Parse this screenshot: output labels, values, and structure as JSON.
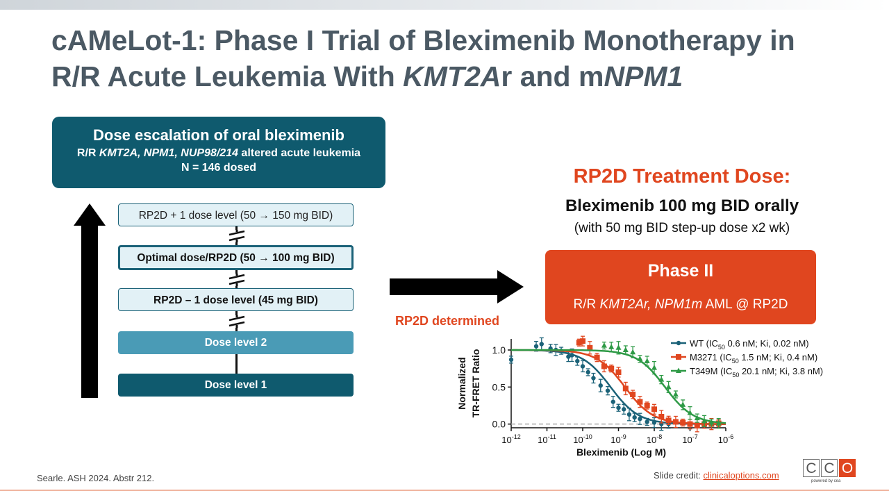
{
  "slide": {
    "title_line1": "cAMeLot-1: Phase I Trial of Bleximenib Monotherapy in",
    "title_line2_a": "R/R Acute Leukemia With ",
    "title_line2_b": "KMT2A",
    "title_line2_c": "r and m",
    "title_line2_d": "NPM1"
  },
  "escalation": {
    "title": "Dose escalation of oral bleximenib",
    "sub_a": "R/R ",
    "sub_b": "KMT2A, NPM1, NUP98/214",
    "sub_c": " altered acute leukemia",
    "n": "N = 146 dosed"
  },
  "levels": [
    "RP2D + 1 dose level (50 → 150 mg BID)",
    "Optimal dose/RP2D (50 → 100 mg BID)",
    "RP2D – 1 dose level (45 mg BID)",
    "Dose level 2",
    "Dose level 1"
  ],
  "rp2d": {
    "determined": "RP2D determined",
    "title": "RP2D Treatment Dose:",
    "dose": "Bleximenib 100 mg BID orally",
    "stepup": "(with 50 mg BID step-up dose x2 wk)"
  },
  "phase2": {
    "title": "Phase II",
    "sub_a": "R/R ",
    "sub_b": "KMT2Ar, NPM1m",
    "sub_c": " AML @ RP2D"
  },
  "footer": {
    "citation": "Searle. ASH 2024. Abstr 212.",
    "credit_label": "Slide credit: ",
    "credit_link": "clinicaloptions.com",
    "logo_letters": [
      "C",
      "C",
      "O"
    ],
    "logo_tag": "powered by cea"
  },
  "colors": {
    "title": "#4b5964",
    "teal_dark": "#0f5a6e",
    "teal_mid": "#4a9bb6",
    "teal_light": "#e2f1f6",
    "orange": "#e0461f",
    "wt": "#1b6278",
    "m3271": "#e0461f",
    "t349m": "#2e9a46"
  },
  "chart_data": {
    "type": "scatter",
    "xlabel": "Bleximenib (Log M)",
    "ylabel_line1": "Normalized",
    "ylabel_line2": "TR-FRET Ratio",
    "x_log_range": [
      -12,
      -6
    ],
    "ylim": [
      -0.05,
      1.15
    ],
    "x_ticks": [
      -12,
      -11,
      -10,
      -9,
      -8,
      -7,
      -6
    ],
    "y_ticks": [
      "1.0",
      "0.5",
      "0.0"
    ],
    "y_tick_values": [
      1.0,
      0.5,
      0.0
    ],
    "legend_position": "top-right",
    "series": [
      {
        "name": "WT",
        "ic50_label": "0.6 nM; Ki, 0.02 nM)",
        "ic50_log": -9.22,
        "hill": 1.1,
        "points": [
          [
            -12.0,
            0.87
          ],
          [
            -11.3,
            1.05
          ],
          [
            -11.15,
            1.08
          ],
          [
            -10.9,
            1.02
          ],
          [
            -10.75,
            1.0
          ],
          [
            -10.6,
            0.99
          ],
          [
            -10.4,
            0.91
          ],
          [
            -10.3,
            0.93
          ],
          [
            -10.15,
            0.85
          ],
          [
            -10.0,
            0.78
          ],
          [
            -9.85,
            0.7
          ],
          [
            -9.7,
            0.62
          ],
          [
            -9.5,
            0.52
          ],
          [
            -9.3,
            0.45
          ],
          [
            -9.15,
            0.3
          ],
          [
            -9.0,
            0.22
          ],
          [
            -8.85,
            0.2
          ],
          [
            -8.7,
            0.13
          ],
          [
            -8.55,
            0.09
          ],
          [
            -8.4,
            0.07
          ],
          [
            -8.2,
            0.03
          ],
          [
            -8.0,
            0.02
          ],
          [
            -7.8,
            0.0
          ],
          [
            -7.6,
            0.0
          ]
        ]
      },
      {
        "name": "M3271",
        "ic50_label": "1.5 nM; Ki, 0.4 nM)",
        "ic50_log": -8.82,
        "hill": 1.1,
        "points": [
          [
            -10.1,
            1.1
          ],
          [
            -10.0,
            1.12
          ],
          [
            -9.8,
            1.03
          ],
          [
            -9.6,
            0.9
          ],
          [
            -9.4,
            0.78
          ],
          [
            -9.2,
            0.75
          ],
          [
            -9.0,
            0.7
          ],
          [
            -8.8,
            0.48
          ],
          [
            -8.6,
            0.4
          ],
          [
            -8.4,
            0.3
          ],
          [
            -8.2,
            0.25
          ],
          [
            -8.0,
            0.2
          ],
          [
            -7.8,
            0.1
          ],
          [
            -7.6,
            0.05
          ],
          [
            -7.4,
            0.03
          ],
          [
            -7.2,
            0.02
          ],
          [
            -7.0,
            0.0
          ],
          [
            -6.8,
            -0.02
          ],
          [
            -6.6,
            0.0
          ],
          [
            -6.4,
            0.0
          ],
          [
            -6.2,
            0.01
          ]
        ]
      },
      {
        "name": "T349M",
        "ic50_label": "20.1 nM; Ki, 3.8 nM)",
        "ic50_log": -7.7,
        "hill": 1.1,
        "points": [
          [
            -9.4,
            1.06
          ],
          [
            -9.2,
            1.04
          ],
          [
            -9.0,
            1.03
          ],
          [
            -8.8,
            1.0
          ],
          [
            -8.6,
            0.97
          ],
          [
            -8.4,
            0.88
          ],
          [
            -8.2,
            0.85
          ],
          [
            -8.0,
            0.76
          ],
          [
            -7.8,
            0.6
          ],
          [
            -7.6,
            0.5
          ],
          [
            -7.4,
            0.4
          ],
          [
            -7.2,
            0.26
          ],
          [
            -7.0,
            0.15
          ],
          [
            -6.8,
            0.08
          ],
          [
            -6.6,
            0.04
          ],
          [
            -6.4,
            0.02
          ],
          [
            -6.2,
            0.01
          ]
        ]
      }
    ]
  }
}
